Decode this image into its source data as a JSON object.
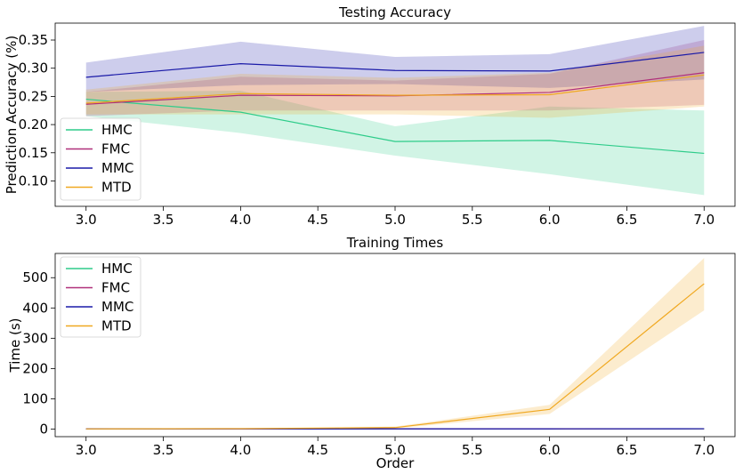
{
  "chart_data": [
    {
      "type": "line",
      "title": "Testing Accuracy",
      "xlabel": "",
      "ylabel": "Prediction Accuracy (%)",
      "x": [
        3.0,
        4.0,
        5.0,
        6.0,
        7.0
      ],
      "xlim": [
        2.8,
        7.2
      ],
      "ylim": [
        0.055,
        0.38
      ],
      "xticks": [
        "3.0",
        "3.5",
        "4.0",
        "4.5",
        "5.0",
        "5.5",
        "6.0",
        "6.5",
        "7.0"
      ],
      "yticks": [
        "0.10",
        "0.15",
        "0.20",
        "0.25",
        "0.30",
        "0.35"
      ],
      "legend_position": "lower-left",
      "grid": false,
      "series": [
        {
          "name": "HMC",
          "color": "#2ecc8a",
          "values": [
            0.245,
            0.222,
            0.17,
            0.172,
            0.149
          ],
          "lower": [
            0.215,
            0.185,
            0.145,
            0.112,
            0.075
          ],
          "upper": [
            0.258,
            0.26,
            0.197,
            0.232,
            0.225
          ]
        },
        {
          "name": "FMC",
          "color": "#b0307a",
          "values": [
            0.236,
            0.252,
            0.251,
            0.257,
            0.292
          ],
          "lower": [
            0.215,
            0.225,
            0.225,
            0.225,
            0.235
          ],
          "upper": [
            0.258,
            0.285,
            0.278,
            0.29,
            0.35
          ]
        },
        {
          "name": "MMC",
          "color": "#1a1aa8",
          "values": [
            0.284,
            0.308,
            0.296,
            0.295,
            0.328
          ],
          "lower": [
            0.258,
            0.27,
            0.272,
            0.265,
            0.28
          ],
          "upper": [
            0.31,
            0.347,
            0.32,
            0.325,
            0.375
          ]
        },
        {
          "name": "MTD",
          "color": "#f0a820",
          "values": [
            0.238,
            0.255,
            0.252,
            0.253,
            0.288
          ],
          "lower": [
            0.218,
            0.218,
            0.218,
            0.212,
            0.232
          ],
          "upper": [
            0.262,
            0.29,
            0.283,
            0.292,
            0.34
          ]
        }
      ]
    },
    {
      "type": "line",
      "title": "Training Times",
      "xlabel": "Order",
      "ylabel": "Time (s)",
      "x": [
        3.0,
        4.0,
        5.0,
        6.0,
        7.0
      ],
      "xlim": [
        2.8,
        7.2
      ],
      "ylim": [
        -25,
        580
      ],
      "xticks": [
        "3.0",
        "3.5",
        "4.0",
        "4.5",
        "5.0",
        "5.5",
        "6.0",
        "6.5",
        "7.0"
      ],
      "yticks": [
        "0",
        "100",
        "200",
        "300",
        "400",
        "500"
      ],
      "legend_position": "upper-left",
      "grid": false,
      "series": [
        {
          "name": "HMC",
          "color": "#2ecc8a",
          "values": [
            0.2,
            0.3,
            0.5,
            0.5,
            0.8
          ],
          "lower": [
            0.1,
            0.2,
            0.3,
            0.3,
            0.5
          ],
          "upper": [
            0.3,
            0.4,
            0.7,
            0.7,
            1.1
          ]
        },
        {
          "name": "FMC",
          "color": "#b0307a",
          "values": [
            0.3,
            0.4,
            0.6,
            0.6,
            1.0
          ],
          "lower": [
            0.2,
            0.3,
            0.4,
            0.4,
            0.7
          ],
          "upper": [
            0.4,
            0.5,
            0.8,
            0.8,
            1.3
          ]
        },
        {
          "name": "MMC",
          "color": "#1a1aa8",
          "values": [
            0.4,
            0.5,
            0.8,
            0.8,
            1.2
          ],
          "lower": [
            0.3,
            0.4,
            0.6,
            0.6,
            0.9
          ],
          "upper": [
            0.5,
            0.6,
            1.0,
            1.0,
            1.5
          ]
        },
        {
          "name": "MTD",
          "color": "#f0a820",
          "values": [
            0.5,
            1.5,
            5,
            65,
            480
          ],
          "lower": [
            0.2,
            0.8,
            2,
            50,
            392
          ],
          "upper": [
            0.8,
            2.2,
            8,
            80,
            565
          ]
        }
      ]
    }
  ]
}
